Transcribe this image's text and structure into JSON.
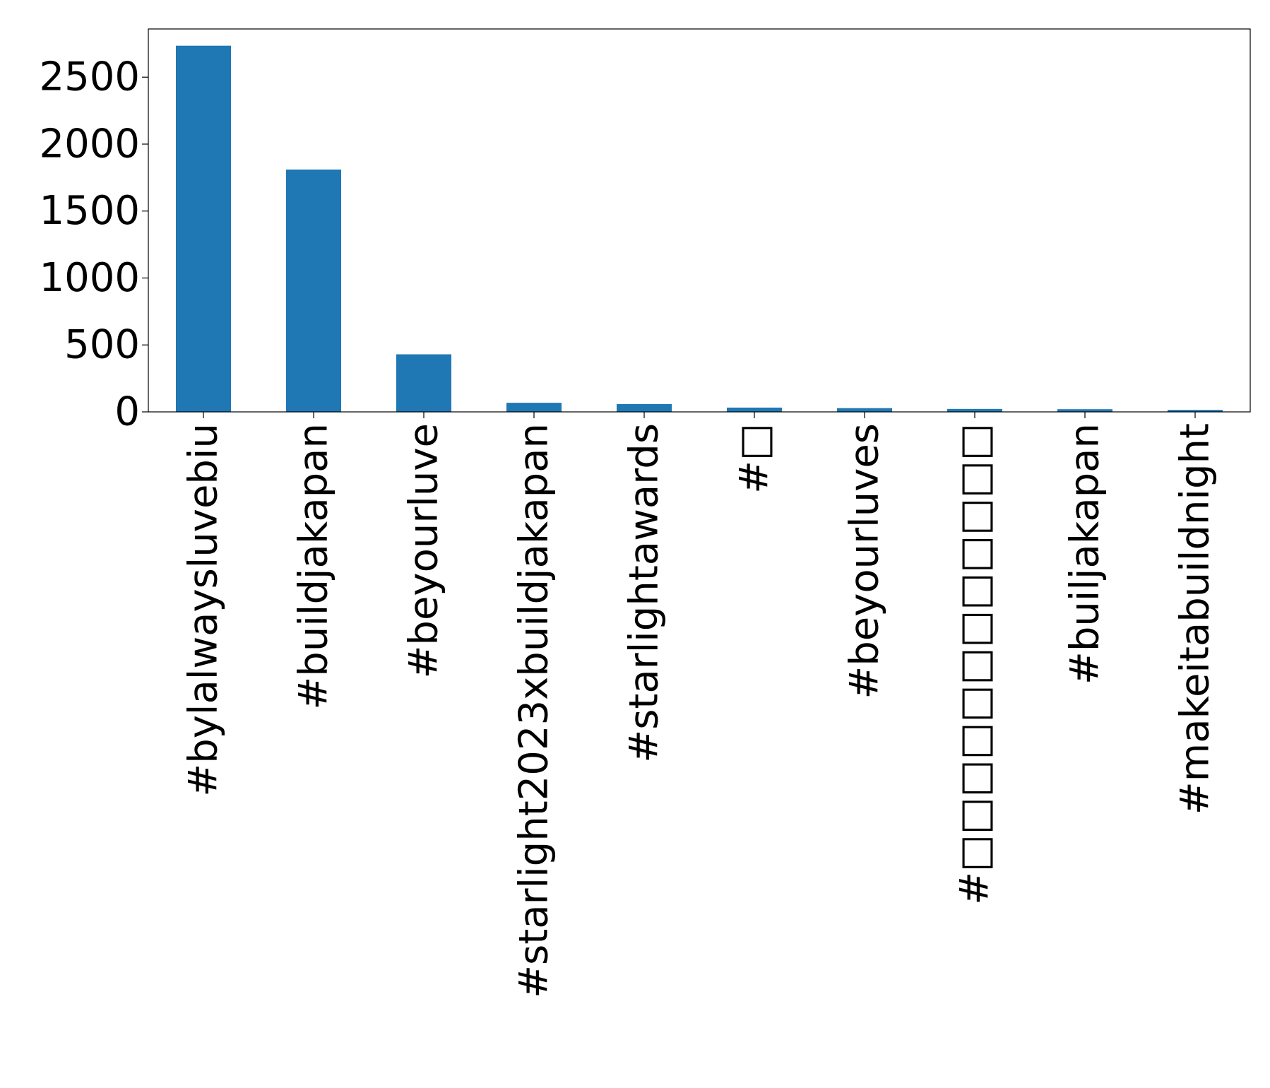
{
  "chart_data": {
    "type": "bar",
    "title": "",
    "xlabel": "",
    "ylabel": "",
    "categories": [
      "#bylalwaysluvebiu",
      "#buildjakapan",
      "#beyourluve",
      "#starlight2023xbuildjakapan",
      "#starlightawards",
      "#□",
      "#beyourluves",
      "#□□□□□□□□□□□□",
      "#builjakapan",
      "#makeitabuildnight"
    ],
    "values": [
      2735,
      1810,
      430,
      68,
      58,
      32,
      28,
      22,
      20,
      15
    ],
    "ylim": [
      0,
      2860
    ],
    "yticks": [
      0,
      500,
      1000,
      1500,
      2000,
      2500
    ],
    "grid": false,
    "legend": "none",
    "colors": {
      "bar": "#1f77b4",
      "axis": "#000000",
      "background": "#ffffff"
    }
  }
}
